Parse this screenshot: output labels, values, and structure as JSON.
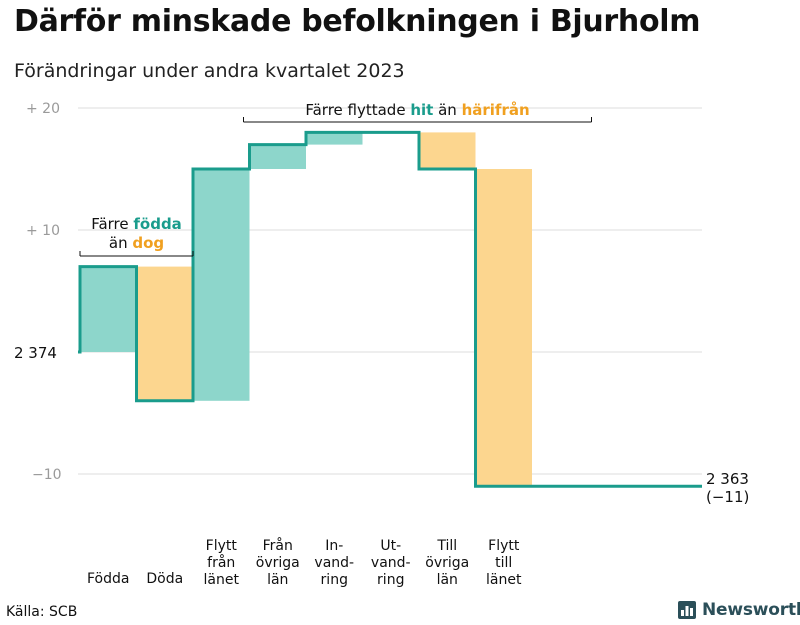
{
  "title": "Därför minskade befolkningen i Bjurholm",
  "subtitle": "Förändringar under andra kvartalet 2023",
  "source": "Källa: SCB",
  "brand": {
    "name": "Newsworthy",
    "icon": "bar-chart-logo-icon"
  },
  "colors": {
    "teal": "#1a9c8c",
    "teal_light": "#8dd6cb",
    "orange_light": "#fcd68f",
    "orange_text": "#f0a020"
  },
  "chart_data": {
    "type": "waterfall",
    "title": "Därför minskade befolkningen i Bjurholm",
    "subtitle": "Förändringar under andra kvartalet 2023",
    "start_label": "2 374",
    "end_label": "2 363",
    "end_change_label": "(−11)",
    "ylim": [
      -12,
      21
    ],
    "yticks": [
      {
        "value": 20,
        "label": "+  20"
      },
      {
        "value": 10,
        "label": "+  10"
      },
      {
        "value": 0,
        "label": ""
      },
      {
        "value": -10,
        "label": "−10"
      }
    ],
    "steps": [
      {
        "category": "Födda",
        "label_lines": [
          "Födda"
        ],
        "change": 7,
        "kind": "increase"
      },
      {
        "category": "Döda",
        "label_lines": [
          "Döda"
        ],
        "change": -11,
        "kind": "decrease"
      },
      {
        "category": "Flytt från länet",
        "label_lines": [
          "Flytt",
          "från",
          "länet"
        ],
        "change": 19,
        "kind": "increase"
      },
      {
        "category": "Från övriga län",
        "label_lines": [
          "Från",
          "övriga",
          "län"
        ],
        "change": 2,
        "kind": "increase"
      },
      {
        "category": "Invandring",
        "label_lines": [
          "In-",
          "vand-",
          "ring"
        ],
        "change": 1,
        "kind": "increase"
      },
      {
        "category": "Utvandring",
        "label_lines": [
          "Ut-",
          "vand-",
          "ring"
        ],
        "change": 0,
        "kind": "decrease"
      },
      {
        "category": "Till övriga län",
        "label_lines": [
          "Till",
          "övriga",
          "län"
        ],
        "change": -3,
        "kind": "decrease"
      },
      {
        "category": "Flytt till länet",
        "label_lines": [
          "Flytt",
          "till",
          "länet"
        ],
        "change": -26,
        "kind": "decrease"
      }
    ],
    "annotations": [
      {
        "parts": [
          "Färre ",
          "födda",
          ""
        ],
        "line2": [
          "än ",
          "dog"
        ],
        "covers": [
          "Födda",
          "Döda"
        ]
      },
      {
        "parts": [
          "Färre flyttade ",
          "hit",
          " än ",
          "härifrån"
        ],
        "covers": [
          "Flytt från länet",
          "Till övriga län"
        ]
      }
    ]
  }
}
